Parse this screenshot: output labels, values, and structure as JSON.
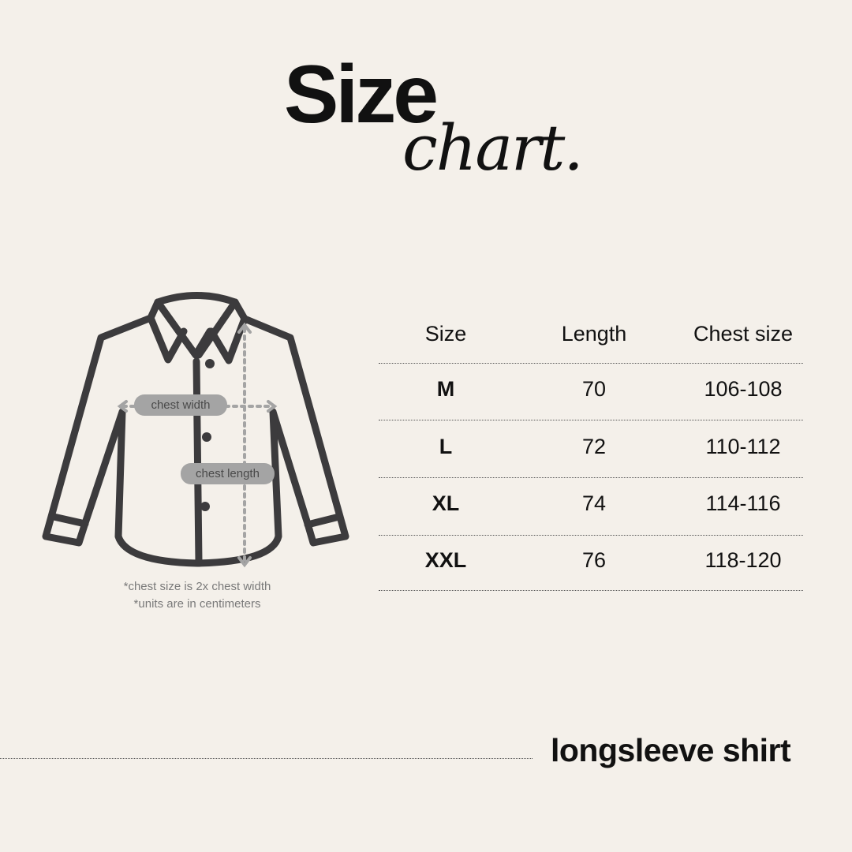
{
  "title": {
    "main": "Size",
    "sub": "chart."
  },
  "diagram": {
    "labels": {
      "chest_width": "chest width",
      "chest_length": "chest length"
    },
    "notes": [
      "*chest size is 2x chest width",
      "*units are in centimeters"
    ],
    "colors": {
      "outline": "#3c3b3d",
      "measure": "#a4a4a4"
    }
  },
  "table": {
    "headers": [
      "Size",
      "Length",
      "Chest size"
    ],
    "rows": [
      {
        "size": "M",
        "length": "70",
        "chest": "106-108"
      },
      {
        "size": "L",
        "length": "72",
        "chest": "110-112"
      },
      {
        "size": "XL",
        "length": "74",
        "chest": "114-116"
      },
      {
        "size": "XXL",
        "length": "76",
        "chest": "118-120"
      }
    ]
  },
  "footer": {
    "product": "longsleeve shirt"
  },
  "colors": {
    "background": "#f4f0ea",
    "text": "#111111"
  }
}
